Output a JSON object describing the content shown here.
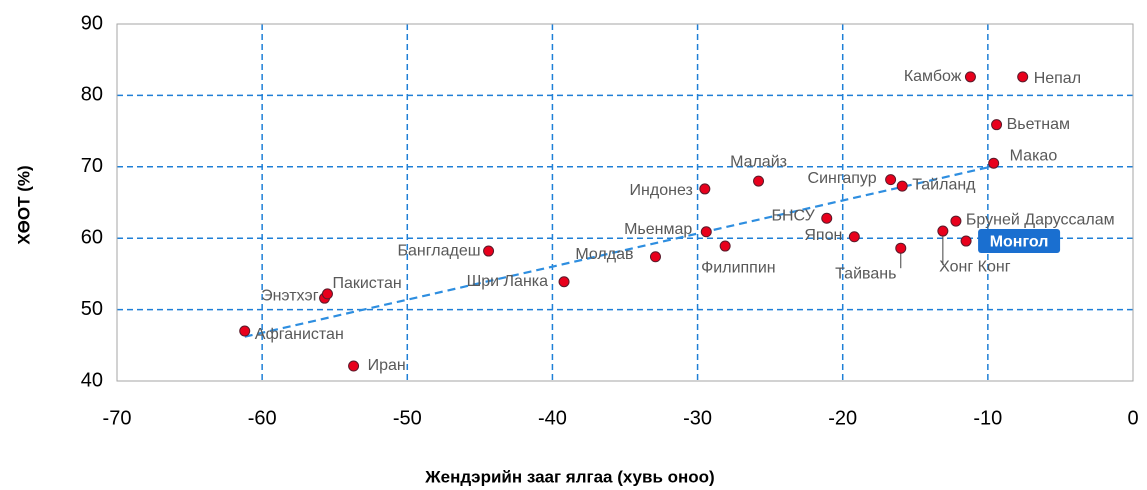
{
  "chart_data": {
    "type": "scatter",
    "xlabel": "Жендэрийн зааг ялгаа (хувь оноо)",
    "ylabel": "ХӨОТ (%)",
    "xlim": [
      -70,
      0
    ],
    "xticks": [
      -70,
      -60,
      -50,
      -40,
      -30,
      -20,
      -10,
      0
    ],
    "ylim": [
      40,
      90
    ],
    "yticks": [
      40,
      50,
      60,
      70,
      80,
      90
    ],
    "grid": true,
    "color": "#e8001c",
    "series": [
      {
        "name": null,
        "labels": [
          "Афганистан",
          "Иран",
          "Энэтхэг",
          "Пакистан",
          "Бангладеш",
          "Шри Ланка",
          "Молдав",
          "Индонез",
          "Мьенмар",
          "Филиппин",
          "Малайз",
          "БНСУ",
          "Япон",
          "Сингапур",
          "Тайланд",
          "Тайвань",
          "Хонг Конг",
          "Бруней Даруссалам",
          "Монгол",
          "Камбож",
          "Непал",
          "Вьетнам",
          "Макао"
        ],
        "x": [
          -61.2,
          -53.7,
          -55.7,
          -55.5,
          -44.4,
          -39.2,
          -32.9,
          -29.5,
          -29.4,
          -28.1,
          -25.8,
          -21.1,
          -19.2,
          -16.7,
          -15.9,
          -16.0,
          -13.1,
          -12.2,
          -11.5,
          -11.2,
          -7.6,
          -9.4,
          -9.6
        ],
        "values": [
          47.0,
          42.1,
          51.6,
          52.2,
          58.2,
          53.9,
          57.4,
          66.9,
          60.9,
          58.9,
          68.0,
          62.8,
          60.2,
          68.2,
          67.3,
          58.6,
          61.0,
          62.4,
          59.6,
          82.6,
          82.6,
          75.9,
          70.5
        ]
      }
    ],
    "trendline": {
      "x": [
        -61.2,
        -9.6
      ],
      "values": [
        46.2,
        70.1
      ]
    }
  }
}
